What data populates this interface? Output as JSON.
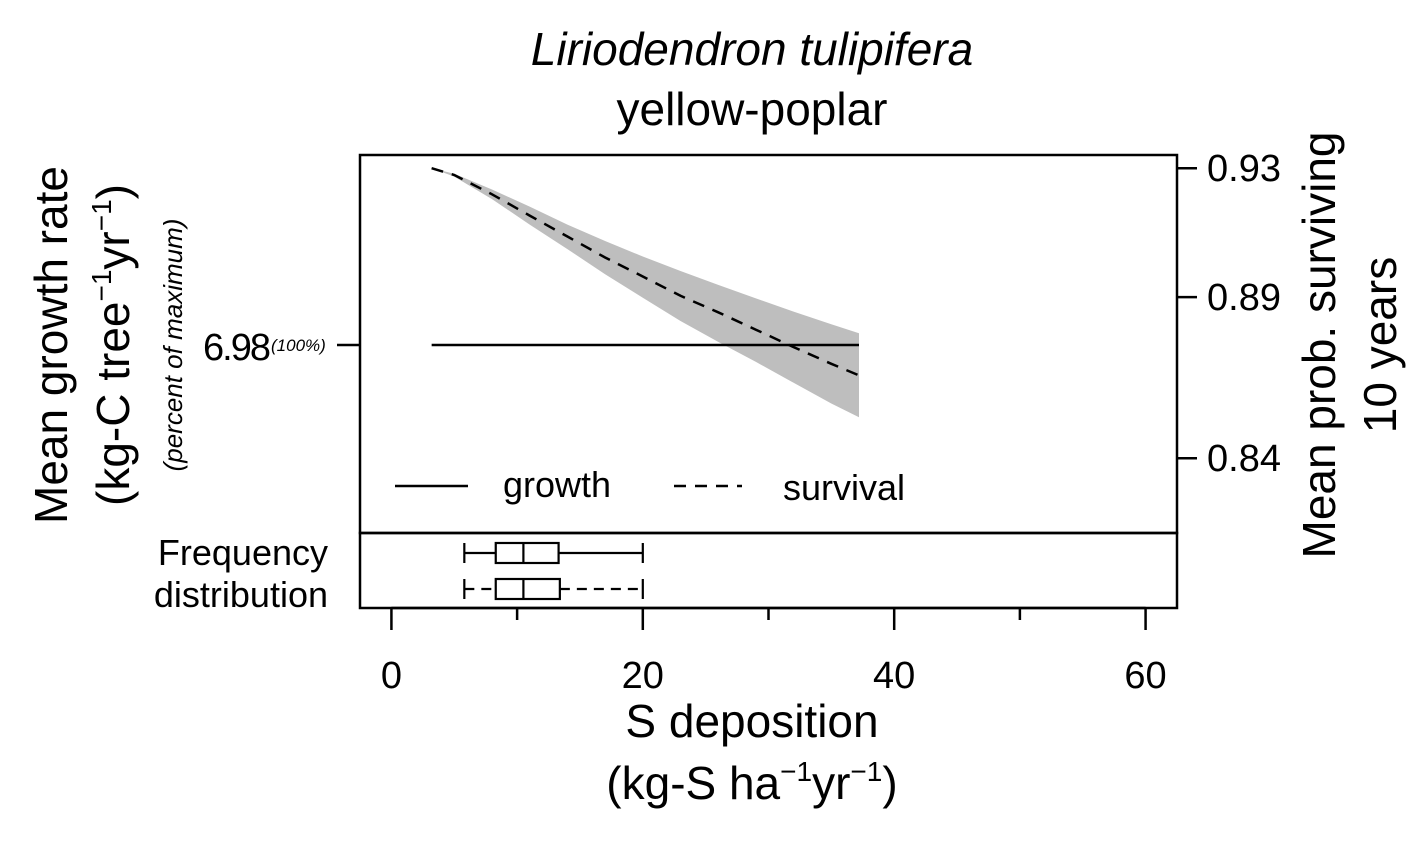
{
  "chart_data": {
    "type": "line",
    "title": "Liriodendron tulipifera",
    "subtitle": "yellow-poplar",
    "xlabel_line1": "S deposition",
    "xlabel_line2": {
      "prefix": "(kg-S ha",
      "exp1": "−1",
      "mid": "yr",
      "exp2": "−1",
      "suffix": ")"
    },
    "xlim": [
      -2.5,
      62.5
    ],
    "x_ticks": [
      0,
      20,
      40,
      60
    ],
    "x_ticks_minor": [
      10,
      30,
      50
    ],
    "x_tick_labels": [
      "0",
      "20",
      "40",
      "60"
    ],
    "ylabel_left_line1": "Mean growth rate",
    "ylabel_left_line2": {
      "prefix": "(kg-C tree",
      "exp1": "−1",
      "mid": "yr",
      "exp2": "−1",
      "suffix": ")"
    },
    "ylabel_left_sub": "(percent of maximum)",
    "left_tick": {
      "value": "6.98",
      "pct": "(100%)"
    },
    "ylabel_right_line1": "Mean prob. surviving",
    "ylabel_right_line2": "10 years",
    "ylim_right": [
      0.8168,
      0.9341
    ],
    "y_ticks_right": [
      0.84,
      0.89,
      0.93
    ],
    "y_tick_labels_right": [
      "0.84",
      "0.89",
      "0.93"
    ],
    "series": [
      {
        "name": "growth",
        "style": "solid",
        "x": [
          3.2,
          37.2
        ],
        "level": "6.98"
      },
      {
        "name": "survival",
        "style": "dashed",
        "axis": "right",
        "x": [
          3.2,
          5,
          8,
          11,
          14,
          17,
          20,
          23,
          26,
          29,
          32,
          35,
          37.2
        ],
        "y": [
          0.93,
          0.9279,
          0.9219,
          0.9153,
          0.9088,
          0.9023,
          0.8964,
          0.8904,
          0.8853,
          0.8799,
          0.8745,
          0.8693,
          0.8657
        ],
        "ci_upper": [
          0.93,
          0.9283,
          0.9234,
          0.9181,
          0.9125,
          0.9074,
          0.9026,
          0.8981,
          0.8938,
          0.8896,
          0.8855,
          0.8816,
          0.8788
        ],
        "ci_lower": [
          0.93,
          0.9274,
          0.9204,
          0.9125,
          0.9049,
          0.8971,
          0.8898,
          0.8826,
          0.8761,
          0.8699,
          0.8634,
          0.857,
          0.8527
        ]
      }
    ],
    "ci_color": "#bebebe",
    "legend_position": "bottom",
    "frequency_label_line1": "Frequency",
    "frequency_label_line2": "distribution",
    "boxplots": [
      {
        "name": "growth",
        "style": "solid",
        "min": 5.8,
        "q1": 8.3,
        "median": 10.5,
        "q3": 13.3,
        "max": 20.0
      },
      {
        "name": "survival",
        "style": "dashed",
        "min": 5.8,
        "q1": 8.3,
        "median": 10.5,
        "q3": 13.4,
        "max": 20.0
      }
    ]
  }
}
